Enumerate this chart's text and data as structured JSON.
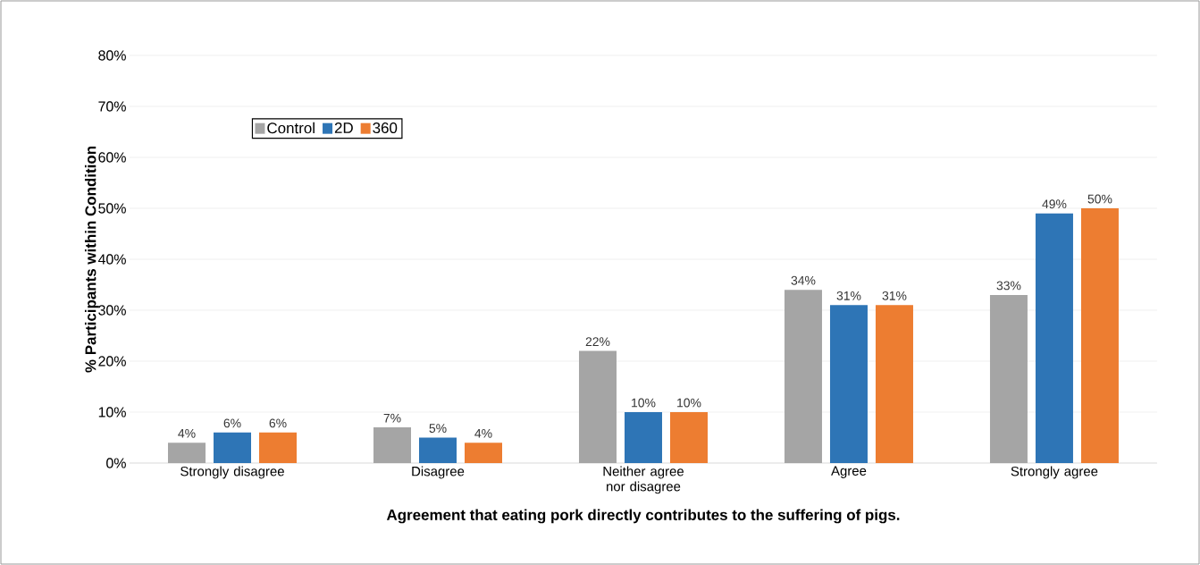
{
  "chart_data": {
    "type": "bar",
    "xlabel": "Agreement that eating pork directly contributes to the suffering of pigs.",
    "ylabel": "% Participants within Condition",
    "categories": [
      "Strongly disagree",
      "Disagree",
      "Neither agree nor disagree",
      "Agree",
      "Strongly agree"
    ],
    "series": [
      {
        "name": "Control",
        "color": "#a5a5a5",
        "values": [
          4,
          7,
          22,
          34,
          33
        ],
        "value_labels": [
          "4%",
          "7%",
          "22%",
          "34%",
          "33%"
        ]
      },
      {
        "name": "2D",
        "color": "#2e75b6",
        "values": [
          6,
          5,
          10,
          31,
          49
        ],
        "value_labels": [
          "6%",
          "5%",
          "10%",
          "31%",
          "49%"
        ]
      },
      {
        "name": "360",
        "color": "#ed7d31",
        "values": [
          6,
          4,
          10,
          31,
          50
        ],
        "value_labels": [
          "6%",
          "4%",
          "10%",
          "31%",
          "50%"
        ]
      }
    ],
    "ylim": [
      0,
      80
    ],
    "yticks": [
      {
        "value": 0,
        "label": "0%"
      },
      {
        "value": 10,
        "label": "10%"
      },
      {
        "value": 20,
        "label": "20%"
      },
      {
        "value": 30,
        "label": "30%"
      },
      {
        "value": 40,
        "label": "40%"
      },
      {
        "value": 50,
        "label": "50%"
      },
      {
        "value": 60,
        "label": "60%"
      },
      {
        "value": 70,
        "label": "70%"
      },
      {
        "value": 80,
        "label": "80%"
      }
    ],
    "grid": "y",
    "legend": "top left"
  }
}
